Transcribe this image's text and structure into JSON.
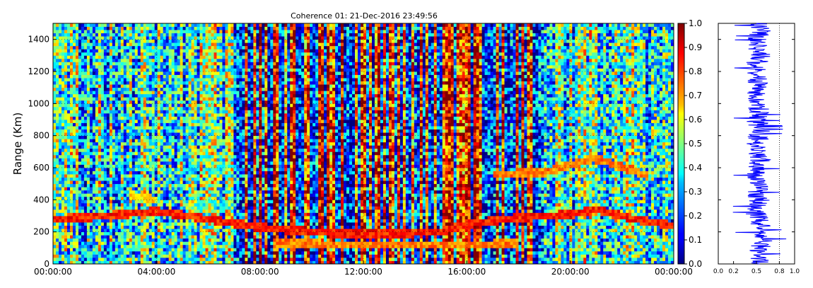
{
  "chart_data": [
    {
      "type": "heatmap",
      "title": "Coherence 01: 21-Dec-2016 23:49:56",
      "ylabel": "Range (Km)",
      "xlabel": "",
      "x_ticks": [
        "00:00:00",
        "04:00:00",
        "08:00:00",
        "12:00:00",
        "16:00:00",
        "20:00:00",
        "00:00:00"
      ],
      "xlim_hours": [
        0,
        24
      ],
      "y_ticks": [
        "0",
        "200",
        "400",
        "600",
        "800",
        "1000",
        "1200",
        "1400"
      ],
      "ylim": [
        0,
        1500
      ],
      "colormap": "jet",
      "color_range": [
        0.0,
        1.0
      ],
      "colorbar_ticks": [
        "0.0",
        "0.1",
        "0.2",
        "0.3",
        "0.4",
        "0.5",
        "0.6",
        "0.7",
        "0.8",
        "0.9",
        "1.0"
      ],
      "grid": true,
      "features": [
        {
          "points": [
            [
              0,
              280
            ],
            [
              2,
              300
            ],
            [
              4,
              330
            ],
            [
              6,
              280
            ],
            [
              8,
              230
            ],
            [
              10,
              200
            ],
            [
              12,
              185
            ],
            [
              15,
              200
            ],
            [
              16,
              250
            ],
            [
              18,
              290
            ],
            [
              20,
              310
            ],
            [
              21,
              340
            ],
            [
              22.5,
              280
            ],
            [
              24,
              240
            ]
          ],
          "value": 0.85
        },
        {
          "points": [
            [
              8.5,
              130
            ],
            [
              12,
              120
            ],
            [
              16,
              120
            ],
            [
              18,
              130
            ]
          ],
          "value": 0.75
        },
        {
          "points": [
            [
              17,
              560
            ],
            [
              19,
              570
            ],
            [
              21,
              660
            ],
            [
              23,
              550
            ]
          ],
          "value": 0.75
        },
        {
          "points": [
            [
              3,
              430
            ],
            [
              4,
              400
            ]
          ],
          "value": 0.65
        }
      ]
    },
    {
      "type": "line",
      "x_ticks": [
        "0.0",
        "0.2",
        "0.5",
        "0.8",
        "1.0"
      ],
      "xlim": [
        0,
        1
      ],
      "ylim": [
        0,
        1500
      ],
      "reference_line_x": 0.8,
      "profile": [
        [
          0,
          0.55
        ],
        [
          50,
          0.5
        ],
        [
          100,
          0.55
        ],
        [
          150,
          0.6
        ],
        [
          200,
          0.52
        ],
        [
          250,
          0.55
        ],
        [
          300,
          0.5
        ],
        [
          350,
          0.48
        ],
        [
          400,
          0.55
        ],
        [
          450,
          0.5
        ],
        [
          500,
          0.53
        ],
        [
          550,
          0.5
        ],
        [
          600,
          0.5
        ],
        [
          650,
          0.55
        ],
        [
          700,
          0.52
        ],
        [
          750,
          0.5
        ],
        [
          800,
          0.53
        ],
        [
          850,
          0.55
        ],
        [
          900,
          0.5
        ],
        [
          950,
          0.52
        ],
        [
          1000,
          0.55
        ],
        [
          1050,
          0.5
        ],
        [
          1100,
          0.53
        ],
        [
          1150,
          0.5
        ],
        [
          1200,
          0.52
        ],
        [
          1250,
          0.5
        ],
        [
          1300,
          0.55
        ],
        [
          1350,
          0.5
        ],
        [
          1400,
          0.52
        ],
        [
          1450,
          0.55
        ],
        [
          1500,
          0.5
        ]
      ]
    }
  ]
}
